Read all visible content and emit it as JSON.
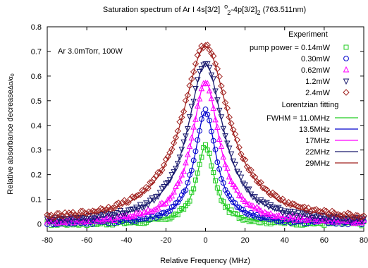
{
  "chart_data": {
    "type": "scatter",
    "title_parts": {
      "main": "Saturation spectrum of Ar I 4s[3/2]",
      "sup1": "o",
      "sub1": "2",
      "mid": "-4p[3/2]",
      "sub2": "2",
      "end": " (763.511nm)"
    },
    "xlabel": "Relative Frequency (MHz)",
    "ylabel_parts": {
      "main": "Relative absorbance decrease",
      "frac": "Δα/α",
      "sub": "0"
    },
    "annotation": "Ar 3.0mTorr, 100W",
    "xlim": [
      -80,
      80
    ],
    "ylim": [
      -0.03,
      0.8
    ],
    "x_ticks": [
      -80,
      -60,
      -40,
      -20,
      0,
      20,
      40,
      60,
      80
    ],
    "y_ticks": [
      0,
      0.1,
      0.2,
      0.3,
      0.4,
      0.5,
      0.6,
      0.7,
      0.8
    ],
    "grid": false,
    "legend_position": "top-right",
    "legend_headers": {
      "experiment": "Experiment",
      "fit": "Lorentzian fitting"
    },
    "experiment_series": [
      {
        "name": "pump power = 0.14mW",
        "marker": "square",
        "color": "#22cc22",
        "peak": 0.315,
        "fwhm": 11.0,
        "offset": 0.0
      },
      {
        "name": "0.30mW",
        "marker": "circle",
        "color": "#0000cc",
        "peak": 0.455,
        "fwhm": 13.5,
        "offset": 0.002
      },
      {
        "name": "0.62mW",
        "marker": "triangle-up",
        "color": "#ff00ff",
        "peak": 0.575,
        "fwhm": 17.0,
        "offset": 0.004
      },
      {
        "name": "1.2mW",
        "marker": "triangle-down",
        "color": "#1a1a6e",
        "peak": 0.65,
        "fwhm": 22.0,
        "offset": 0.006
      },
      {
        "name": "2.4mW",
        "marker": "diamond",
        "color": "#a0211e",
        "peak": 0.72,
        "fwhm": 29.0,
        "offset": 0.008
      }
    ],
    "fit_series": [
      {
        "name": "FWHM = 11.0MHz",
        "color": "#22cc22",
        "peak": 0.315,
        "fwhm": 11.0
      },
      {
        "name": "13.5MHz",
        "color": "#0000cc",
        "peak": 0.455,
        "fwhm": 13.5
      },
      {
        "name": "17MHz",
        "color": "#ff00ff",
        "peak": 0.575,
        "fwhm": 17.0
      },
      {
        "name": "22MHz",
        "color": "#1a1a6e",
        "peak": 0.65,
        "fwhm": 22.0
      },
      {
        "name": "29MHz",
        "color": "#a0211e",
        "peak": 0.72,
        "fwhm": 29.0
      }
    ]
  }
}
